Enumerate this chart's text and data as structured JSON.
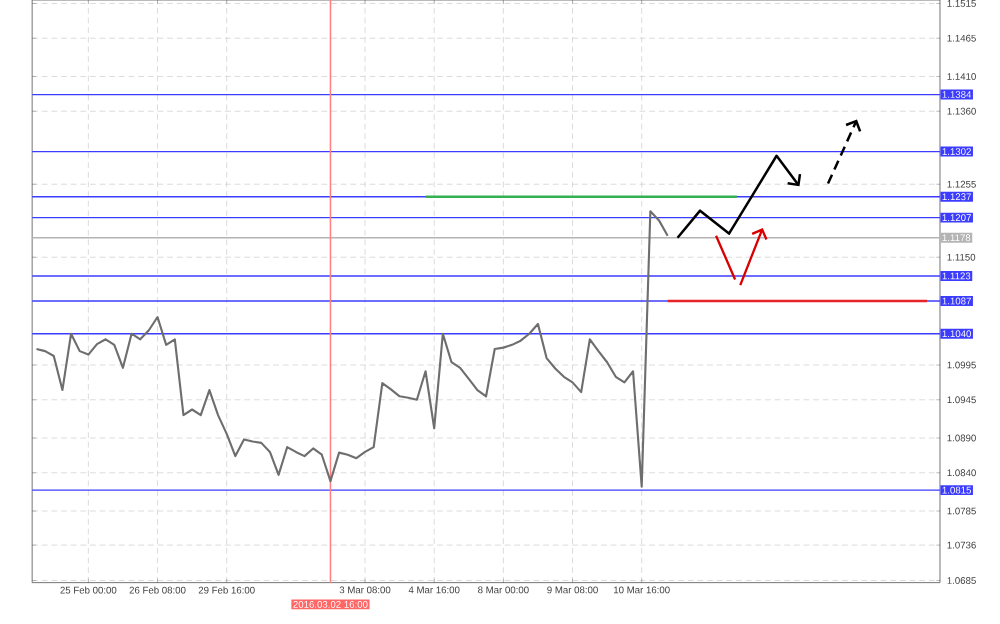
{
  "chart_data": {
    "type": "line",
    "categories": [
      null,
      null,
      null,
      null,
      null,
      null,
      "25 Feb 00:00",
      null,
      null,
      null,
      null,
      null,
      null,
      null,
      "26 Feb 08:00",
      null,
      null,
      null,
      null,
      null,
      null,
      null,
      "29 Feb 16:00",
      null,
      null,
      null,
      null,
      null,
      null,
      null,
      null,
      null,
      null,
      null,
      "2016.03.02 16:00",
      null,
      null,
      null,
      "3 Mar 08:00",
      null,
      null,
      null,
      null,
      null,
      null,
      null,
      "4 Mar 16:00",
      null,
      null,
      null,
      null,
      null,
      null,
      null,
      "8 Mar 00:00",
      null,
      null,
      null,
      null,
      null,
      null,
      null,
      "9 Mar 08:00",
      null,
      null,
      null,
      null,
      null,
      null,
      null,
      "10 Mar 16:00",
      null,
      null,
      null,
      null,
      null,
      null,
      null,
      null,
      null,
      null,
      null,
      null,
      null,
      null,
      null,
      null,
      null,
      null,
      null,
      null,
      null,
      null,
      null,
      null,
      null,
      null,
      null,
      null,
      null,
      null,
      null,
      null,
      null,
      null
    ],
    "series": [
      {
        "color": "#6e6e6e",
        "values": [
          1.1018,
          1.1015,
          1.1008,
          1.0959,
          1.104,
          1.1015,
          1.101,
          1.1025,
          1.1032,
          1.1024,
          1.0991,
          1.104,
          1.1032,
          1.1045,
          1.1064,
          1.1024,
          1.1032,
          1.0923,
          1.0931,
          1.0923,
          1.0959,
          1.0923,
          1.0896,
          1.0864,
          1.0888,
          1.0885,
          1.0883,
          1.087,
          1.0837,
          1.0877,
          1.087,
          1.0864,
          1.0875,
          1.0866,
          1.0828,
          1.0869,
          1.0866,
          1.0861,
          1.087,
          1.0877,
          1.0969,
          1.096,
          1.095,
          1.0948,
          1.0945,
          1.0986,
          1.0904,
          1.104,
          1.0999,
          1.0991,
          1.0975,
          1.0959,
          1.095,
          1.1018,
          1.102,
          1.1024,
          1.103,
          1.104,
          1.1054,
          1.1005,
          1.099,
          1.0978,
          1.097,
          1.0956,
          1.1032,
          1.1015,
          1.0999,
          1.0978,
          1.097,
          1.0986,
          1.082,
          1.1216,
          1.1203,
          1.1181,
          null,
          null,
          null,
          null,
          null,
          null,
          null,
          null,
          null,
          null,
          null,
          null,
          null,
          null,
          null,
          null,
          null,
          null,
          null,
          null,
          null,
          null,
          null,
          null,
          null,
          null,
          null,
          null,
          null,
          null,
          null
        ]
      },
      {
        "color": "#33b050",
        "values": [
          null,
          null,
          null,
          null,
          null,
          null,
          null,
          null,
          null,
          null,
          null,
          null,
          null,
          null,
          null,
          null,
          null,
          null,
          null,
          null,
          null,
          null,
          null,
          null,
          null,
          null,
          null,
          null,
          null,
          null,
          null,
          null,
          null,
          null,
          null,
          null,
          null,
          null,
          null,
          null,
          null,
          null,
          null,
          null,
          null,
          1.1237,
          1.1237,
          1.1237,
          1.1237,
          1.1237,
          1.1237,
          1.1237,
          1.1237,
          1.1237,
          1.1237,
          1.1237,
          1.1237,
          1.1237,
          1.1237,
          1.1237,
          1.1237,
          1.1237,
          1.1237,
          1.1237,
          1.1237,
          1.1237,
          1.1237,
          1.1237,
          1.1237,
          1.1237,
          1.1237,
          1.1237,
          1.1237,
          1.1237,
          1.1237,
          1.1237,
          1.1237,
          1.1237,
          1.1237,
          1.1237,
          1.1237,
          1.1237,
          null,
          null,
          null,
          null,
          null,
          null,
          null,
          null,
          null,
          null,
          null,
          null,
          null,
          null,
          null,
          null,
          null,
          null,
          null,
          null,
          null,
          null,
          null
        ]
      },
      {
        "color": "#e8232a",
        "values": [
          null,
          null,
          null,
          null,
          null,
          null,
          null,
          null,
          null,
          null,
          null,
          null,
          null,
          null,
          null,
          null,
          null,
          null,
          null,
          null,
          null,
          null,
          null,
          null,
          null,
          null,
          null,
          null,
          null,
          null,
          null,
          null,
          null,
          null,
          null,
          null,
          null,
          null,
          null,
          null,
          null,
          null,
          null,
          null,
          null,
          null,
          null,
          null,
          null,
          null,
          null,
          null,
          null,
          null,
          null,
          null,
          null,
          null,
          null,
          null,
          null,
          null,
          null,
          null,
          null,
          null,
          null,
          null,
          null,
          null,
          null,
          null,
          null,
          1.1087,
          1.1087,
          1.1087,
          1.1087,
          1.1087,
          1.1087,
          1.1087,
          1.1087,
          1.1087,
          1.1087,
          1.1087,
          1.1087,
          1.1087,
          1.1087,
          1.1087,
          1.1087,
          1.1087,
          1.1087,
          1.1087,
          1.1087,
          1.1087,
          1.1087,
          1.1087,
          1.1087,
          1.1087,
          1.1087,
          1.1087,
          1.1087,
          1.1087,
          1.1087,
          1.1087,
          null
        ]
      }
    ],
    "ylim": [
      1.0682,
      1.152
    ],
    "yticks": [
      {
        "value": 1.0685,
        "label": "1.0685"
      },
      {
        "value": 1.0736,
        "label": "1.0736"
      },
      {
        "value": 1.0785,
        "label": "1.0785"
      },
      {
        "value": 1.084,
        "label": "1.0840"
      },
      {
        "value": 1.089,
        "label": "1.0890"
      },
      {
        "value": 1.0945,
        "label": "1.0945"
      },
      {
        "value": 1.0995,
        "label": "1.0995"
      },
      {
        "value": 1.115,
        "label": "1.1150"
      },
      {
        "value": 1.1255,
        "label": "1.1255"
      },
      {
        "value": 1.136,
        "label": "1.1360"
      },
      {
        "value": 1.141,
        "label": "1.1410"
      },
      {
        "value": 1.1465,
        "label": "1.1465"
      },
      {
        "value": 1.1515,
        "label": "1.1515"
      }
    ],
    "ref_lines": [
      {
        "axis": "y",
        "value": 1.1384,
        "label": "1.1384",
        "color": "#3c3cff"
      },
      {
        "axis": "y",
        "value": 1.1302,
        "label": "1.1302",
        "color": "#3c3cff"
      },
      {
        "axis": "y",
        "value": 1.1237,
        "label": "1.1237",
        "color": "#3c3cff"
      },
      {
        "axis": "y",
        "value": 1.1207,
        "label": "1.1207",
        "color": "#3c3cff"
      },
      {
        "axis": "y",
        "value": 1.1178,
        "label": "1.1178",
        "color": "#b4b4b4"
      },
      {
        "axis": "y",
        "value": 1.1123,
        "label": "1.1123",
        "color": "#3c3cff"
      },
      {
        "axis": "y",
        "value": 1.1087,
        "label": "1.1087",
        "color": "#3c3cff"
      },
      {
        "axis": "y",
        "value": 1.104,
        "label": "1.1040",
        "color": "#3c3cff"
      },
      {
        "axis": "y",
        "value": 1.0815,
        "label": "1.0815",
        "color": "#3c3cff"
      },
      {
        "axis": "x",
        "value": "2016.03.02 16:00",
        "color": "#ff8080"
      }
    ],
    "grid": true
  }
}
